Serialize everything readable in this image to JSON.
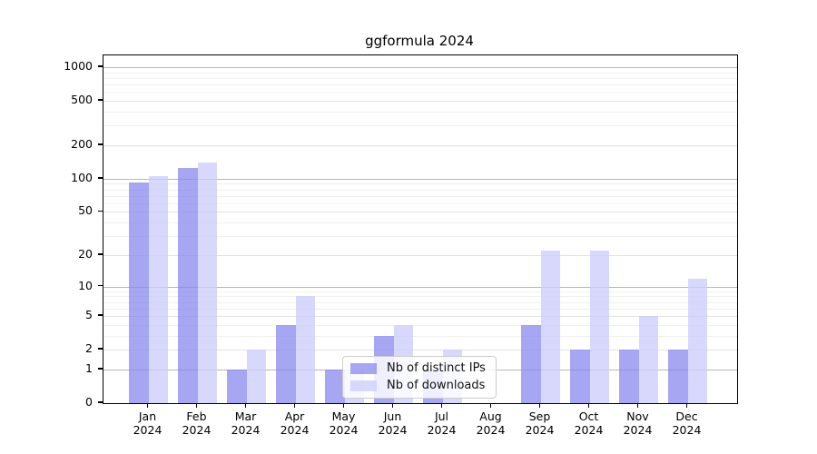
{
  "chart_data": {
    "type": "bar",
    "title": "ggformula 2024",
    "year_label": "2024",
    "categories": [
      "Jan",
      "Feb",
      "Mar",
      "Apr",
      "May",
      "Jun",
      "Jul",
      "Aug",
      "Sep",
      "Oct",
      "Nov",
      "Dec"
    ],
    "series": [
      {
        "name": "Nb of distinct IPs",
        "color": "rgba(136,136,238,0.75)",
        "values": [
          93,
          125,
          1,
          4,
          1,
          3,
          1,
          0,
          4,
          2,
          2,
          2
        ]
      },
      {
        "name": "Nb of downloads",
        "color": "rgba(205,205,252,0.78)",
        "values": [
          106,
          140,
          2,
          8,
          1,
          4,
          2,
          0,
          22,
          22,
          5,
          12
        ]
      }
    ],
    "y_axis": {
      "scale": "log1p",
      "ticks": [
        0,
        1,
        2,
        5,
        10,
        20,
        50,
        100,
        200,
        500,
        1000
      ],
      "major_grid_values": [
        1,
        10,
        100,
        1000
      ],
      "mid_grid_values": [
        2,
        5,
        20,
        50,
        200,
        500
      ],
      "minor_grid_values": [
        3,
        4,
        6,
        7,
        8,
        9,
        30,
        40,
        60,
        70,
        80,
        90,
        300,
        400,
        600,
        700,
        800,
        900
      ],
      "top_value": 1000
    },
    "x_axis": {
      "label_line2": "2024"
    },
    "legend": {
      "position": "bottom-center"
    },
    "grid": true,
    "colors": {
      "grid_major": "#b8b8b8",
      "grid_mid": "#e2e2e2",
      "grid_minor": "#f0f0f0",
      "axis": "#000000",
      "background": "#ffffff"
    }
  }
}
